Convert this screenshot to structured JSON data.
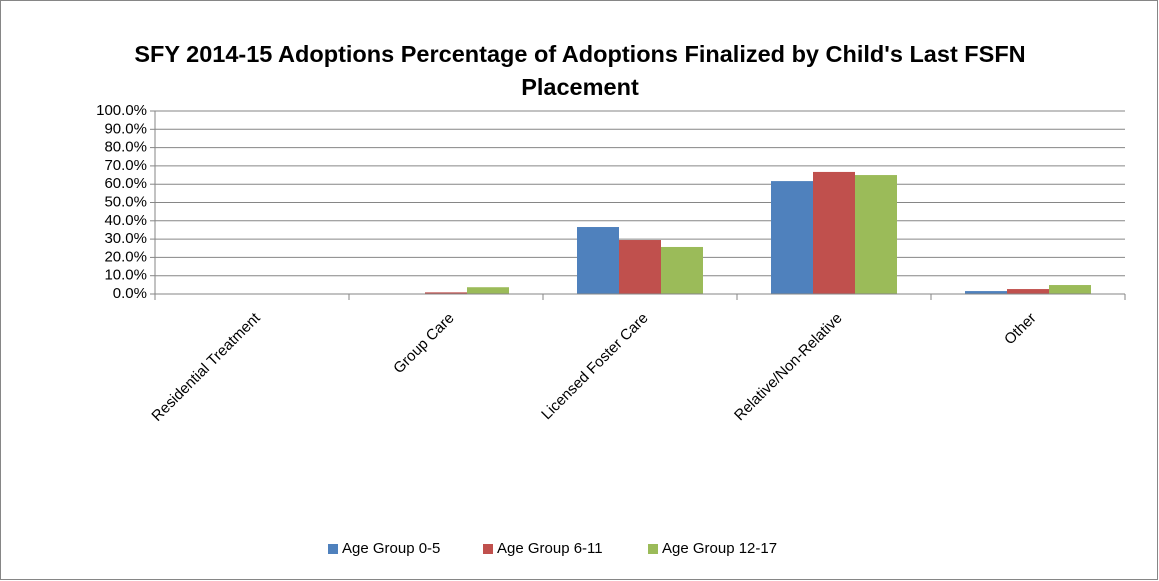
{
  "chart_data": {
    "type": "bar",
    "title": "SFY 2014-15 Adoptions Percentage of Adoptions Finalized by Child's Last FSFN Placement",
    "categories": [
      "Residential Treatment",
      "Group Care",
      "Licensed Foster Care",
      "Relative/Non-Relative",
      "Other"
    ],
    "series": [
      {
        "name": "Age Group 0-5",
        "color": "#4f81bd",
        "values": [
          0,
          0,
          36.6,
          61.7,
          1.6
        ]
      },
      {
        "name": "Age Group 6-11",
        "color": "#c0504d",
        "values": [
          0,
          0.9,
          29.5,
          66.7,
          2.7
        ]
      },
      {
        "name": "Age Group 12-17",
        "color": "#9bbb59",
        "values": [
          0,
          3.7,
          25.7,
          65.0,
          4.9
        ]
      }
    ],
    "ylim": [
      0,
      100
    ],
    "yticks": [
      {
        "value": 0,
        "label": "0.0%"
      },
      {
        "value": 10,
        "label": "10.0%"
      },
      {
        "value": 20,
        "label": "20.0%"
      },
      {
        "value": 30,
        "label": "30.0%"
      },
      {
        "value": 40,
        "label": "40.0%"
      },
      {
        "value": 50,
        "label": "50.0%"
      },
      {
        "value": 60,
        "label": "60.0%"
      },
      {
        "value": 70,
        "label": "70.0%"
      },
      {
        "value": 80,
        "label": "80.0%"
      },
      {
        "value": 90,
        "label": "90.0%"
      },
      {
        "value": 100,
        "label": "100.0%"
      }
    ],
    "grid": true,
    "legend": "bottom"
  }
}
